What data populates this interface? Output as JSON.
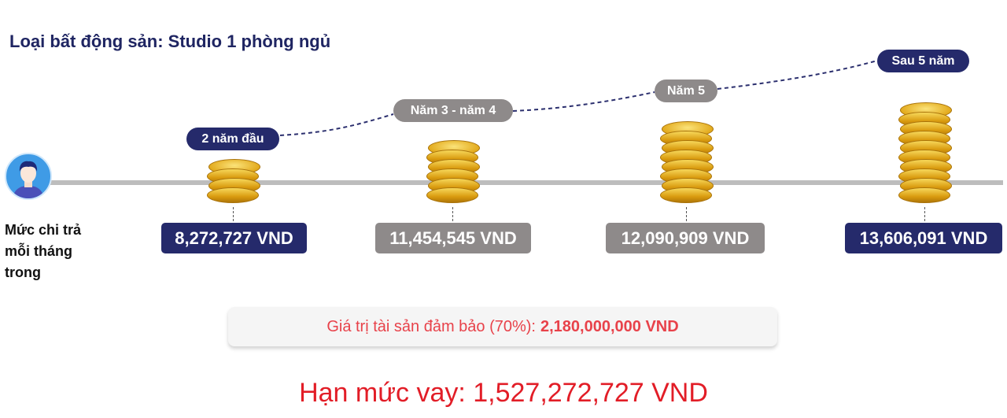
{
  "title": "Loại bất động sản: Studio 1 phòng ngủ",
  "side_label": [
    "Mức chi trả",
    "mỗi tháng",
    "trong"
  ],
  "stages": [
    {
      "period": "2 năm đầu",
      "amount": "8,272,727 VND",
      "coins": 4,
      "color": "#252a6b"
    },
    {
      "period": "Năm 3 - năm 4",
      "amount": "11,454,545 VND",
      "coins": 6,
      "color": "#8e8a8a"
    },
    {
      "period": "Năm 5",
      "amount": "12,090,909 VND",
      "coins": 8,
      "color": "#8e8a8a"
    },
    {
      "period": "Sau 5 năm",
      "amount": "13,606,091 VND",
      "coins": 10,
      "color": "#252a6b"
    }
  ],
  "collateral": {
    "label": "Giá trị tài sản đảm bảo (70%):",
    "value": "2,180,000,000 VND"
  },
  "loan_limit": "Hạn mức vay: 1,527,272,727 VND",
  "icons": {
    "avatar": "user-avatar-icon",
    "coins": "gold-coin-stack-icon"
  }
}
